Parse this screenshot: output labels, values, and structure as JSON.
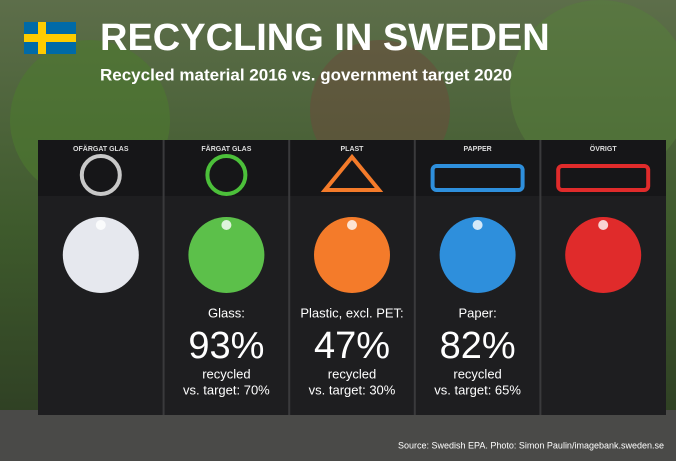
{
  "header": {
    "title": "RECYCLING IN SWEDEN",
    "subtitle": "Recycled material 2016 vs. government target 2020"
  },
  "bins": [
    {
      "label": "OFÄRGAT GLAS"
    },
    {
      "label": "FÄRGAT GLAS",
      "material": "Glass:",
      "recycled_share": "93%",
      "recycled": "recycled",
      "target": "vs. target: 70%"
    },
    {
      "label": "PLAST",
      "material": "Plastic, excl. PET:",
      "recycled_share": "47%",
      "recycled": "recycled",
      "target": "vs. target: 30%"
    },
    {
      "label": "PAPPER",
      "material": "Paper:",
      "recycled_share": "82%",
      "recycled": "recycled",
      "target": "vs. target: 65%"
    },
    {
      "label": "ÖVRIGT"
    }
  ],
  "source": "Source: Swedish EPA. Photo: Simon Paulin/imagebank.sweden.se"
}
